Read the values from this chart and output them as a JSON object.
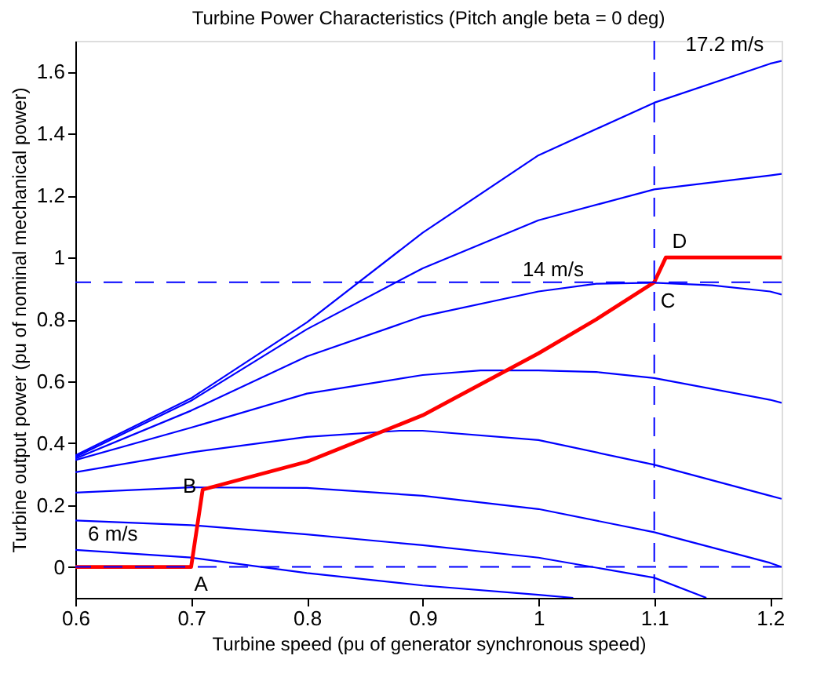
{
  "chart_data": {
    "type": "line",
    "title": "Turbine Power Characteristics (Pitch angle beta = 0 deg)",
    "xlabel": "Turbine speed (pu of generator synchronous speed)",
    "ylabel": "Turbine output power (pu of nominal mechanical power)",
    "xlim": [
      0.6,
      1.21
    ],
    "ylim": [
      -0.1,
      1.7
    ],
    "xticks": [
      0.6,
      0.7,
      0.8,
      0.9,
      1,
      1.1,
      1.2
    ],
    "yticks": [
      0,
      0.2,
      0.4,
      0.6,
      0.8,
      1,
      1.2,
      1.4,
      1.6
    ],
    "grid": false,
    "marker": "none",
    "line_style": "solid",
    "series": [
      {
        "color": "#0000ff",
        "x": [
          0.6,
          0.7,
          0.8,
          0.9,
          1.0,
          1.03
        ],
        "values": [
          0.055,
          0.03,
          -0.02,
          -0.06,
          -0.09,
          -0.1
        ]
      },
      {
        "color": "#0000ff",
        "x": [
          0.6,
          0.7,
          0.8,
          0.9,
          1.0,
          1.1,
          1.145
        ],
        "values": [
          0.15,
          0.135,
          0.105,
          0.07,
          0.03,
          -0.035,
          -0.1
        ]
      },
      {
        "color": "#0000ff",
        "x": [
          0.6,
          0.7,
          0.8,
          0.9,
          1.0,
          1.1,
          1.2,
          1.21
        ],
        "values": [
          0.24,
          0.257,
          0.255,
          0.23,
          0.187,
          0.112,
          0.013,
          0
        ]
      },
      {
        "color": "#0000ff",
        "x": [
          0.6,
          0.7,
          0.8,
          0.88,
          0.9,
          1.0,
          1.1,
          1.2,
          1.21
        ],
        "values": [
          0.306,
          0.37,
          0.42,
          0.44,
          0.44,
          0.41,
          0.33,
          0.23,
          0.22
        ]
      },
      {
        "color": "#0000ff",
        "x": [
          0.6,
          0.7,
          0.8,
          0.9,
          0.95,
          1.0,
          1.05,
          1.1,
          1.2,
          1.21
        ],
        "values": [
          0.345,
          0.45,
          0.56,
          0.62,
          0.635,
          0.635,
          0.63,
          0.61,
          0.54,
          0.53
        ]
      },
      {
        "color": "#0000ff",
        "x": [
          0.6,
          0.7,
          0.8,
          0.9,
          1.0,
          1.05,
          1.1,
          1.15,
          1.2,
          1.21
        ],
        "values": [
          0.35,
          0.505,
          0.68,
          0.81,
          0.89,
          0.915,
          0.918,
          0.91,
          0.89,
          0.88
        ]
      },
      {
        "color": "#0000ff",
        "x": [
          0.6,
          0.7,
          0.8,
          0.9,
          1.0,
          1.1,
          1.2,
          1.21
        ],
        "values": [
          0.355,
          0.537,
          0.768,
          0.965,
          1.12,
          1.22,
          1.265,
          1.27
        ]
      },
      {
        "color": "#0000ff",
        "x": [
          0.6,
          0.7,
          0.8,
          0.9,
          1.0,
          1.1,
          1.2,
          1.21
        ],
        "values": [
          0.36,
          0.545,
          0.79,
          1.08,
          1.33,
          1.5,
          1.626,
          1.635
        ]
      },
      {
        "color": "#ff0000",
        "x": [
          0.6,
          0.7,
          0.71,
          0.8,
          0.9,
          1.0,
          1.05,
          1.1,
          1.11,
          1.21
        ],
        "values": [
          0,
          0,
          0.25,
          0.34,
          0.49,
          0.69,
          0.8,
          0.92,
          1.0,
          1.0
        ]
      }
    ],
    "ref_lines": [
      {
        "axis": "y",
        "value": 0.92,
        "color": "#0000ff",
        "line_style": "dashed"
      },
      {
        "axis": "y",
        "value": 0,
        "color": "#0000ff",
        "line_style": "dashed"
      },
      {
        "axis": "x",
        "value": 1.1,
        "color": "#0000ff",
        "line_style": "dashed"
      }
    ],
    "annotations": [
      {
        "text": "A",
        "x": 0.7,
        "y": 0
      },
      {
        "text": "B",
        "x": 0.71,
        "y": 0.25
      },
      {
        "text": "C",
        "x": 1.1,
        "y": 0.92
      },
      {
        "text": "D",
        "x": 1.11,
        "y": 1.0
      },
      {
        "text": "6 m/s",
        "x": 0.6,
        "y": 0.055
      },
      {
        "text": "14 m/s",
        "x": 1.05,
        "y": 0.915
      },
      {
        "text": "17.2 m/s",
        "x": 1.2,
        "y": 1.626
      }
    ]
  }
}
